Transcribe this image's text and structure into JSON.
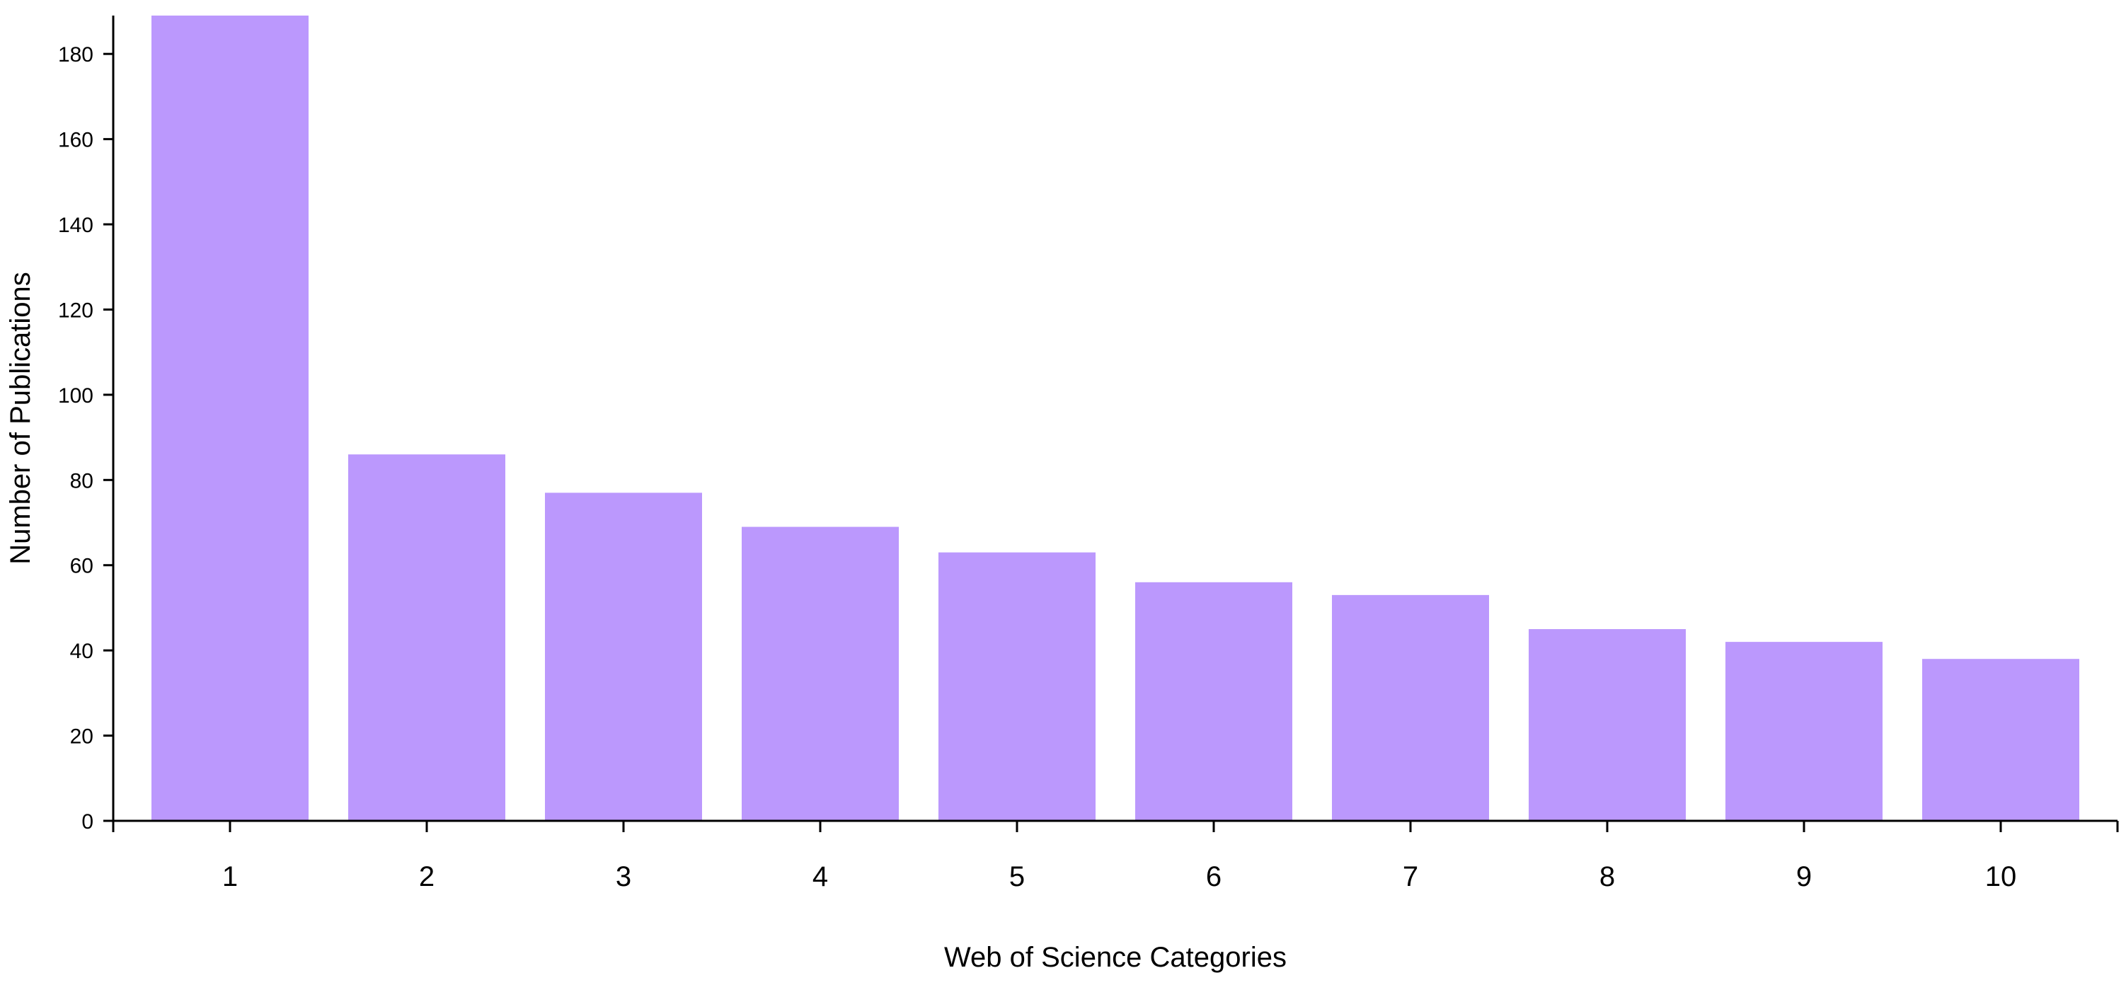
{
  "chart_data": {
    "type": "bar",
    "categories": [
      "1",
      "2",
      "3",
      "4",
      "5",
      "6",
      "7",
      "8",
      "9",
      "10"
    ],
    "values": [
      189,
      86,
      77,
      69,
      63,
      56,
      53,
      45,
      42,
      38
    ],
    "xlabel": "Web of Science Categories",
    "ylabel": "Number of Publications",
    "ylim": [
      0,
      189
    ],
    "yticks": [
      0,
      20,
      40,
      60,
      80,
      100,
      120,
      140,
      160,
      180
    ],
    "bar_color": "#bb98fd",
    "axis_color": "#000000",
    "grid": false,
    "legend": "none"
  }
}
